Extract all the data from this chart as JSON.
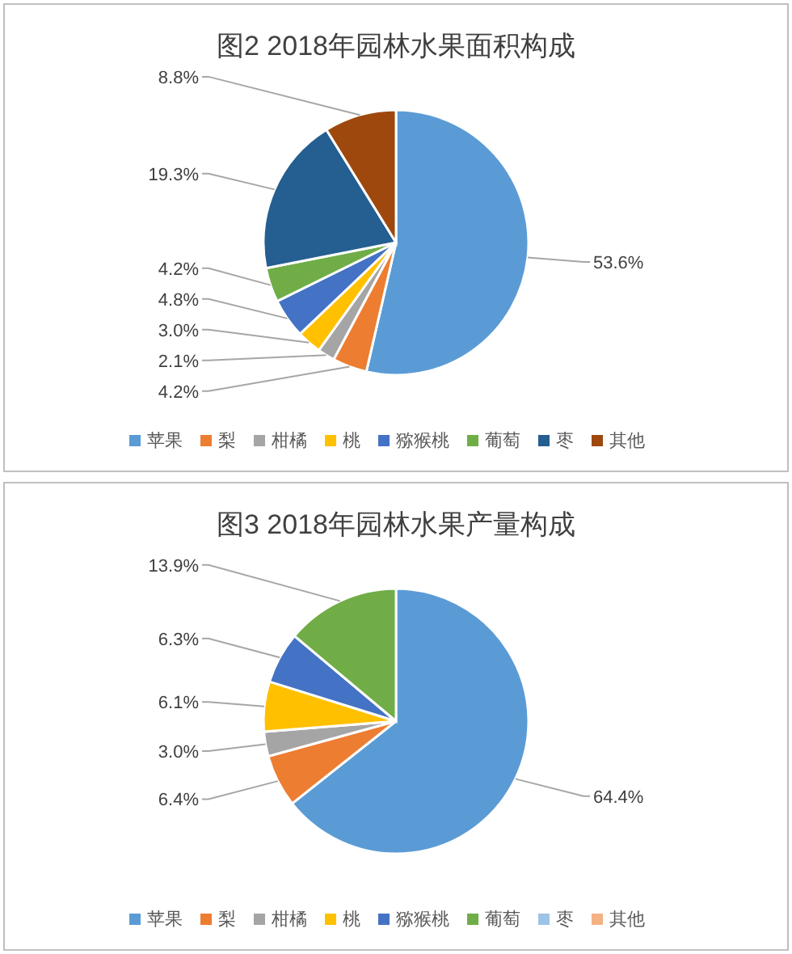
{
  "chart_data": [
    {
      "type": "pie",
      "title": "图2 2018年园林水果面积构成",
      "categories": [
        "苹果",
        "梨",
        "柑橘",
        "桃",
        "猕猴桃",
        "葡萄",
        "枣",
        "其他"
      ],
      "values": [
        53.6,
        4.2,
        2.1,
        3.0,
        4.8,
        4.2,
        19.3,
        8.8
      ],
      "colors": [
        "#5b9bd5",
        "#ed7d31",
        "#a5a5a5",
        "#ffc000",
        "#4472c4",
        "#70ad47",
        "#255e91",
        "#9e480e"
      ],
      "value_labels": [
        "53.6%",
        "4.2%",
        "2.1%",
        "3.0%",
        "4.8%",
        "4.2%",
        "19.3%",
        "8.8%"
      ],
      "legend": "bottom"
    },
    {
      "type": "pie",
      "title": "图3 2018年园林水果产量构成",
      "categories": [
        "苹果",
        "梨",
        "柑橘",
        "桃",
        "猕猴桃",
        "葡萄",
        "枣",
        "其他"
      ],
      "values": [
        64.4,
        6.4,
        3.0,
        6.1,
        6.3,
        13.9,
        null,
        null
      ],
      "colors": [
        "#5b9bd5",
        "#ed7d31",
        "#a5a5a5",
        "#ffc000",
        "#4472c4",
        "#70ad47",
        "#9dc3e6",
        "#f4b183"
      ],
      "value_labels": [
        "64.4%",
        "6.4%",
        "3.0%",
        "6.1%",
        "6.3%",
        "13.9%",
        null,
        null
      ],
      "legend": "bottom"
    }
  ]
}
